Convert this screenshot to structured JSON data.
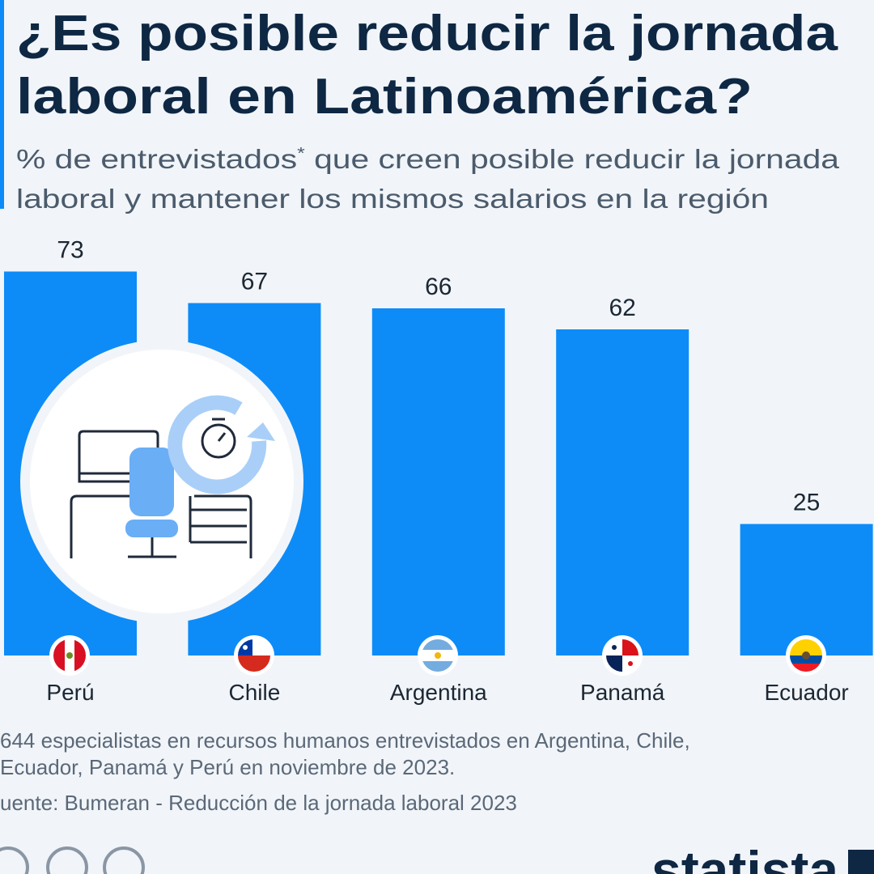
{
  "chart_data": {
    "type": "bar",
    "title": [
      "¿Es posible reducir la jornada",
      "laboral en Latinoamérica?"
    ],
    "subtitle": {
      "line1_start": "% de entrevistados",
      "asterisk": "*",
      "line1_end": " que creen posible reducir la jornada",
      "line2": "laboral y mantener los mismos salarios en la región"
    },
    "categories": [
      "Perú",
      "Chile",
      "Argentina",
      "Panamá",
      "Ecuador"
    ],
    "values": [
      73,
      67,
      66,
      62,
      25
    ],
    "color": "#0d8cf8",
    "notes": [
      "644 especialistas en recursos humanos entrevistados en Argentina, Chile,",
      "Ecuador, Panamá y Perú en noviembre de 2023.",
      "uente: Bumeran - Reducción de la jornada laboral 2023"
    ],
    "brand": "statista"
  }
}
